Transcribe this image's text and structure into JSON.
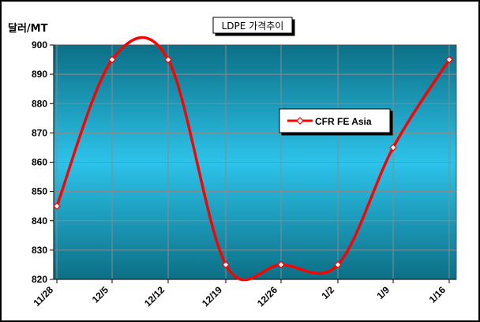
{
  "chart_data": {
    "type": "line",
    "title": "LDPE 가격추이",
    "ylabel": "달러/MT",
    "xlabel": "",
    "categories": [
      "11/28",
      "12/5",
      "12/12",
      "12/19",
      "12/26",
      "1/2",
      "1/9",
      "1/16"
    ],
    "series": [
      {
        "name": "CFR FE Asia",
        "values": [
          845,
          895,
          895,
          825,
          825,
          825,
          865,
          895
        ]
      }
    ],
    "ylim": [
      820,
      900
    ],
    "ytick_step": 10,
    "grid": true,
    "legend_position": "right",
    "colors": {
      "line": "#ff0000",
      "marker_fill": "#ffffff",
      "plot_top": "#0c6f86",
      "plot_mid": "#2dc3ea",
      "plot_bottom": "#0c6f86",
      "grid": "#8a8a8a"
    }
  }
}
